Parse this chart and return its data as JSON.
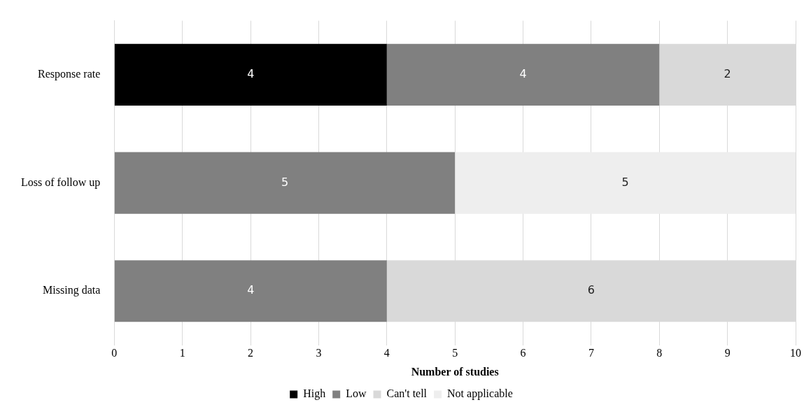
{
  "chart_data": {
    "type": "bar",
    "orientation": "horizontal",
    "stacked": true,
    "categories": [
      "Response rate",
      "Loss of follow up",
      "Missing data"
    ],
    "series": [
      {
        "name": "High",
        "color": "#000000",
        "values": [
          4,
          null,
          null
        ]
      },
      {
        "name": "Low",
        "color": "#808080",
        "values": [
          4,
          5,
          4
        ]
      },
      {
        "name": "Can't tell",
        "color": "#d9d9d9",
        "values": [
          2,
          null,
          6
        ]
      },
      {
        "name": "Not applicable",
        "color": "#eeeeee",
        "values": [
          null,
          5,
          null
        ]
      }
    ],
    "xlabel": "Number of studies",
    "xlim": [
      0,
      10
    ],
    "xticks": [
      0,
      1,
      2,
      3,
      4,
      5,
      6,
      7,
      8,
      9,
      10
    ],
    "grid": "x",
    "legend": "bottom",
    "data_labels": true
  }
}
